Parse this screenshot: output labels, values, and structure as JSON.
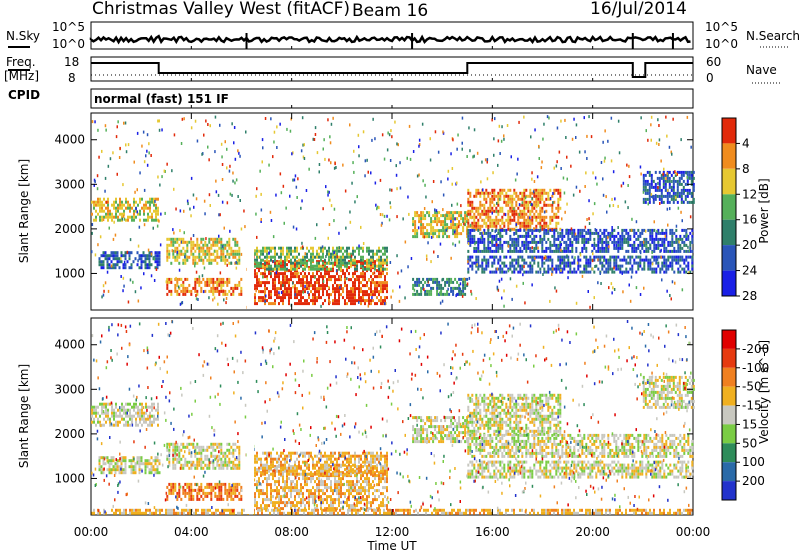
{
  "header": {
    "station": "Christmas Valley West (fitACF)",
    "beam": "Beam 16",
    "date": "16/Jul/2014",
    "cpid_label": "CPID",
    "cpid_value": "normal (fast) 151 IF"
  },
  "top_panels": {
    "nsky_label": "N.Sky",
    "nsearch_label": "N.Search",
    "nsky_ticks": [
      "10^5",
      "10^0"
    ],
    "nsearch_ticks": [
      "10^5",
      "10^0"
    ],
    "freq_label_1": "Freq.",
    "freq_label_2": "[MHz]",
    "freq_ticks": [
      "18",
      "8"
    ],
    "nave_label": "Nave",
    "nave_ticks": [
      "60",
      "0"
    ]
  },
  "chart_data": [
    {
      "type": "heatmap",
      "panel": "power",
      "ylabel": "Slant Range [km]",
      "xlabel": "",
      "ylim": [
        180,
        4600
      ],
      "yticks": [
        1000,
        2000,
        3000,
        4000
      ],
      "colorbar": {
        "label": "Power [dB]",
        "ticks": [
          "4",
          "8",
          "12",
          "16",
          "20",
          "24",
          "28"
        ],
        "colors": [
          "#1a20e6",
          "#2a55b8",
          "#2f7f6a",
          "#55b05a",
          "#e6c832",
          "#f08c1e",
          "#e22a0a"
        ]
      },
      "bands": [
        {
          "t0": 0.0,
          "t1": 2.7,
          "r0": 2200,
          "r1": 2700,
          "level": 4
        },
        {
          "t0": 0.3,
          "t1": 2.7,
          "r0": 1100,
          "r1": 1500,
          "level": 1
        },
        {
          "t0": 3.0,
          "t1": 5.9,
          "r0": 1200,
          "r1": 1800,
          "level": 4
        },
        {
          "t0": 3.0,
          "t1": 6.0,
          "r0": 500,
          "r1": 900,
          "level": 5
        },
        {
          "t0": 6.5,
          "t1": 11.8,
          "r0": 350,
          "r1": 1300,
          "level": 6
        },
        {
          "t0": 6.5,
          "t1": 11.8,
          "r0": 1100,
          "r1": 1600,
          "level": 3
        },
        {
          "t0": 12.8,
          "t1": 15.0,
          "r0": 1800,
          "r1": 2400,
          "level": 4
        },
        {
          "t0": 12.8,
          "t1": 15.0,
          "r0": 500,
          "r1": 900,
          "level": 2
        },
        {
          "t0": 15.0,
          "t1": 18.7,
          "r0": 2000,
          "r1": 2900,
          "level": 5
        },
        {
          "t0": 15.0,
          "t1": 24.0,
          "r0": 1500,
          "r1": 2000,
          "level": 1
        },
        {
          "t0": 15.0,
          "t1": 24.0,
          "r0": 1000,
          "r1": 1400,
          "level": 1
        },
        {
          "t0": 22.0,
          "t1": 24.0,
          "r0": 2600,
          "r1": 3300,
          "level": 1
        }
      ]
    },
    {
      "type": "heatmap",
      "panel": "velocity",
      "ylabel": "Slant Range [km]",
      "xlabel": "Time UT",
      "ylim": [
        180,
        4600
      ],
      "yticks": [
        1000,
        2000,
        3000,
        4000
      ],
      "colorbar": {
        "label": "Velocity [m s^-1]",
        "ticks": [
          "200",
          "100",
          "50",
          "15",
          "-15",
          "-50",
          "-100",
          "-200"
        ],
        "colors": [
          "#2233cc",
          "#2a6aa8",
          "#2e8c5a",
          "#7acc44",
          "#c8c8c0",
          "#f0b020",
          "#f08020",
          "#e63a10",
          "#e00000"
        ]
      },
      "bands": [
        {
          "t0": 0.0,
          "t1": 2.7,
          "r0": 2200,
          "r1": 2700,
          "level": 4
        },
        {
          "t0": 0.3,
          "t1": 2.7,
          "r0": 1100,
          "r1": 1500,
          "level": 4
        },
        {
          "t0": 3.0,
          "t1": 5.9,
          "r0": 1200,
          "r1": 1800,
          "level": 4
        },
        {
          "t0": 3.0,
          "t1": 6.0,
          "r0": 500,
          "r1": 900,
          "level": 6
        },
        {
          "t0": 6.5,
          "t1": 11.8,
          "r0": 350,
          "r1": 1300,
          "level": 5
        },
        {
          "t0": 6.5,
          "t1": 11.8,
          "r0": 1100,
          "r1": 1600,
          "level": 5
        },
        {
          "t0": 12.8,
          "t1": 15.0,
          "r0": 1800,
          "r1": 2400,
          "level": 4
        },
        {
          "t0": 15.0,
          "t1": 18.7,
          "r0": 2000,
          "r1": 2900,
          "level": 4
        },
        {
          "t0": 15.0,
          "t1": 24.0,
          "r0": 1500,
          "r1": 2000,
          "level": 4
        },
        {
          "t0": 15.0,
          "t1": 24.0,
          "r0": 1000,
          "r1": 1400,
          "level": 4
        },
        {
          "t0": 22.0,
          "t1": 24.0,
          "r0": 2600,
          "r1": 3300,
          "level": 4
        },
        {
          "t0": 0.0,
          "t1": 24.0,
          "r0": 200,
          "r1": 320,
          "level": 5
        }
      ]
    }
  ],
  "xaxis": {
    "label": "Time UT",
    "ticks": [
      "00:00",
      "04:00",
      "08:00",
      "12:00",
      "16:00",
      "20:00",
      "00:00"
    ],
    "tick_hours": [
      0,
      4,
      8,
      12,
      16,
      20,
      24
    ]
  }
}
